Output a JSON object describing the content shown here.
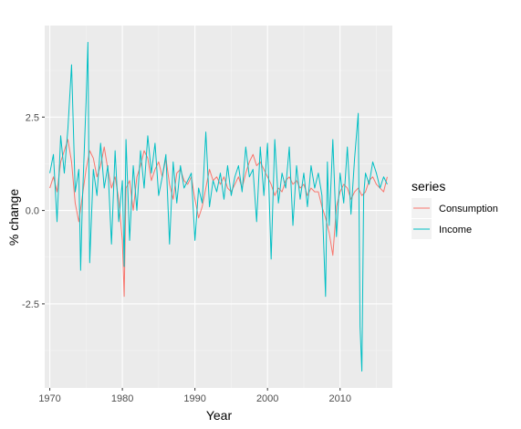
{
  "chart_data": {
    "type": "line",
    "title": "",
    "xlabel": "Year",
    "ylabel": "% change",
    "xlim": [
      1969.3,
      2017.2
    ],
    "ylim": [
      -4.75,
      4.95
    ],
    "x_ticks": [
      1970,
      1980,
      1990,
      2000,
      2010
    ],
    "x_tick_labels": [
      "1970",
      "1980",
      "1990",
      "2000",
      "2010"
    ],
    "y_ticks": [
      -2.5,
      0,
      2.5
    ],
    "y_tick_labels": [
      "-2.5",
      "0.0",
      "2.5"
    ],
    "grid": true,
    "legend": {
      "title": "series",
      "position": "right"
    },
    "series": [
      {
        "name": "Consumption",
        "color": "#F8766D",
        "x": [
          1970.0,
          1970.5,
          1971.0,
          1971.5,
          1972.0,
          1972.5,
          1973.0,
          1973.5,
          1974.0,
          1974.5,
          1975.0,
          1975.5,
          1976.0,
          1976.5,
          1977.0,
          1977.5,
          1978.0,
          1978.5,
          1979.0,
          1979.5,
          1980.0,
          1980.25,
          1980.5,
          1981.0,
          1981.5,
          1982.0,
          1982.5,
          1983.0,
          1983.5,
          1984.0,
          1984.5,
          1985.0,
          1985.5,
          1986.0,
          1986.5,
          1987.0,
          1987.5,
          1988.0,
          1988.5,
          1989.0,
          1989.5,
          1990.0,
          1990.5,
          1991.0,
          1991.5,
          1992.0,
          1992.5,
          1993.0,
          1993.5,
          1994.0,
          1994.5,
          1995.0,
          1995.5,
          1996.0,
          1996.5,
          1997.0,
          1997.5,
          1998.0,
          1998.5,
          1999.0,
          1999.5,
          2000.0,
          2000.5,
          2001.0,
          2001.5,
          2002.0,
          2002.5,
          2003.0,
          2003.5,
          2004.0,
          2004.5,
          2005.0,
          2005.5,
          2006.0,
          2006.5,
          2007.0,
          2007.5,
          2008.0,
          2008.5,
          2009.0,
          2009.5,
          2010.0,
          2010.5,
          2011.0,
          2011.5,
          2012.0,
          2012.5,
          2013.0,
          2013.5,
          2014.0,
          2014.5,
          2015.0,
          2015.5,
          2016.0,
          2016.5
        ],
        "y": [
          0.6,
          0.9,
          0.5,
          1.3,
          1.6,
          1.9,
          1.3,
          0.2,
          -0.3,
          0.4,
          1.1,
          1.6,
          1.4,
          0.9,
          1.2,
          1.7,
          1.1,
          0.6,
          0.9,
          0.3,
          -0.8,
          -2.3,
          0.6,
          0.8,
          0.0,
          0.9,
          1.2,
          1.6,
          1.4,
          0.8,
          1.1,
          1.3,
          0.9,
          1.4,
          0.7,
          0.3,
          1.0,
          1.1,
          0.8,
          0.7,
          0.9,
          0.3,
          -0.2,
          0.1,
          0.6,
          1.1,
          0.8,
          0.9,
          0.7,
          0.9,
          0.6,
          0.5,
          0.7,
          0.9,
          0.6,
          1.0,
          1.3,
          1.5,
          1.2,
          1.3,
          1.1,
          0.9,
          0.7,
          0.4,
          0.6,
          0.5,
          0.8,
          0.9,
          0.7,
          0.8,
          0.6,
          0.7,
          0.4,
          0.6,
          0.5,
          0.5,
          0.1,
          -0.2,
          -0.6,
          -1.2,
          0.1,
          0.5,
          0.7,
          0.6,
          0.3,
          0.5,
          0.6,
          0.4,
          0.5,
          0.8,
          0.9,
          0.7,
          0.6,
          0.5,
          0.9
        ]
      },
      {
        "name": "Income",
        "color": "#00BFC4",
        "x": [
          1970.0,
          1970.5,
          1971.0,
          1971.5,
          1972.0,
          1972.5,
          1973.0,
          1973.5,
          1974.0,
          1974.25,
          1974.5,
          1975.0,
          1975.25,
          1975.5,
          1976.0,
          1976.5,
          1977.0,
          1977.5,
          1978.0,
          1978.5,
          1979.0,
          1979.5,
          1980.0,
          1980.25,
          1980.5,
          1981.0,
          1981.5,
          1982.0,
          1982.5,
          1983.0,
          1983.5,
          1984.0,
          1984.5,
          1985.0,
          1985.5,
          1986.0,
          1986.5,
          1987.0,
          1987.5,
          1988.0,
          1988.5,
          1989.0,
          1989.5,
          1990.0,
          1990.5,
          1991.0,
          1991.5,
          1992.0,
          1992.5,
          1993.0,
          1993.5,
          1994.0,
          1994.5,
          1995.0,
          1995.5,
          1996.0,
          1996.5,
          1997.0,
          1997.5,
          1998.0,
          1998.5,
          1999.0,
          1999.5,
          2000.0,
          2000.5,
          2001.0,
          2001.5,
          2002.0,
          2002.5,
          2003.0,
          2003.5,
          2004.0,
          2004.5,
          2005.0,
          2005.5,
          2006.0,
          2006.5,
          2007.0,
          2007.5,
          2008.0,
          2008.25,
          2008.5,
          2009.0,
          2009.5,
          2010.0,
          2010.5,
          2011.0,
          2011.5,
          2012.0,
          2012.5,
          2012.75,
          2013.0,
          2013.25,
          2013.5,
          2014.0,
          2014.5,
          2015.0,
          2015.5,
          2016.0,
          2016.5
        ],
        "y": [
          1.0,
          1.5,
          -0.3,
          2.0,
          1.0,
          2.2,
          3.9,
          0.5,
          1.1,
          -1.6,
          0.3,
          2.9,
          4.5,
          -1.4,
          1.1,
          0.4,
          1.8,
          0.6,
          1.2,
          -0.9,
          1.6,
          -0.3,
          0.8,
          -1.5,
          1.9,
          -0.8,
          1.2,
          0.0,
          1.6,
          0.6,
          2.0,
          1.0,
          1.8,
          0.4,
          0.9,
          1.5,
          -0.9,
          1.3,
          0.2,
          1.2,
          0.6,
          0.8,
          1.0,
          -0.8,
          0.6,
          0.2,
          2.1,
          0.1,
          0.8,
          0.5,
          1.0,
          0.3,
          1.2,
          0.4,
          0.9,
          1.2,
          0.5,
          1.7,
          0.9,
          1.1,
          -0.3,
          1.7,
          0.4,
          1.8,
          -1.3,
          1.9,
          0.2,
          1.0,
          0.6,
          1.7,
          -0.4,
          1.2,
          0.3,
          1.0,
          0.1,
          1.2,
          0.6,
          1.0,
          0.4,
          -2.3,
          1.3,
          -0.4,
          1.9,
          -0.7,
          1.0,
          0.2,
          1.7,
          -0.1,
          1.4,
          2.6,
          -3.1,
          -4.3,
          0.4,
          1.0,
          0.7,
          1.3,
          1.0,
          0.6,
          0.9,
          0.7
        ]
      }
    ]
  }
}
